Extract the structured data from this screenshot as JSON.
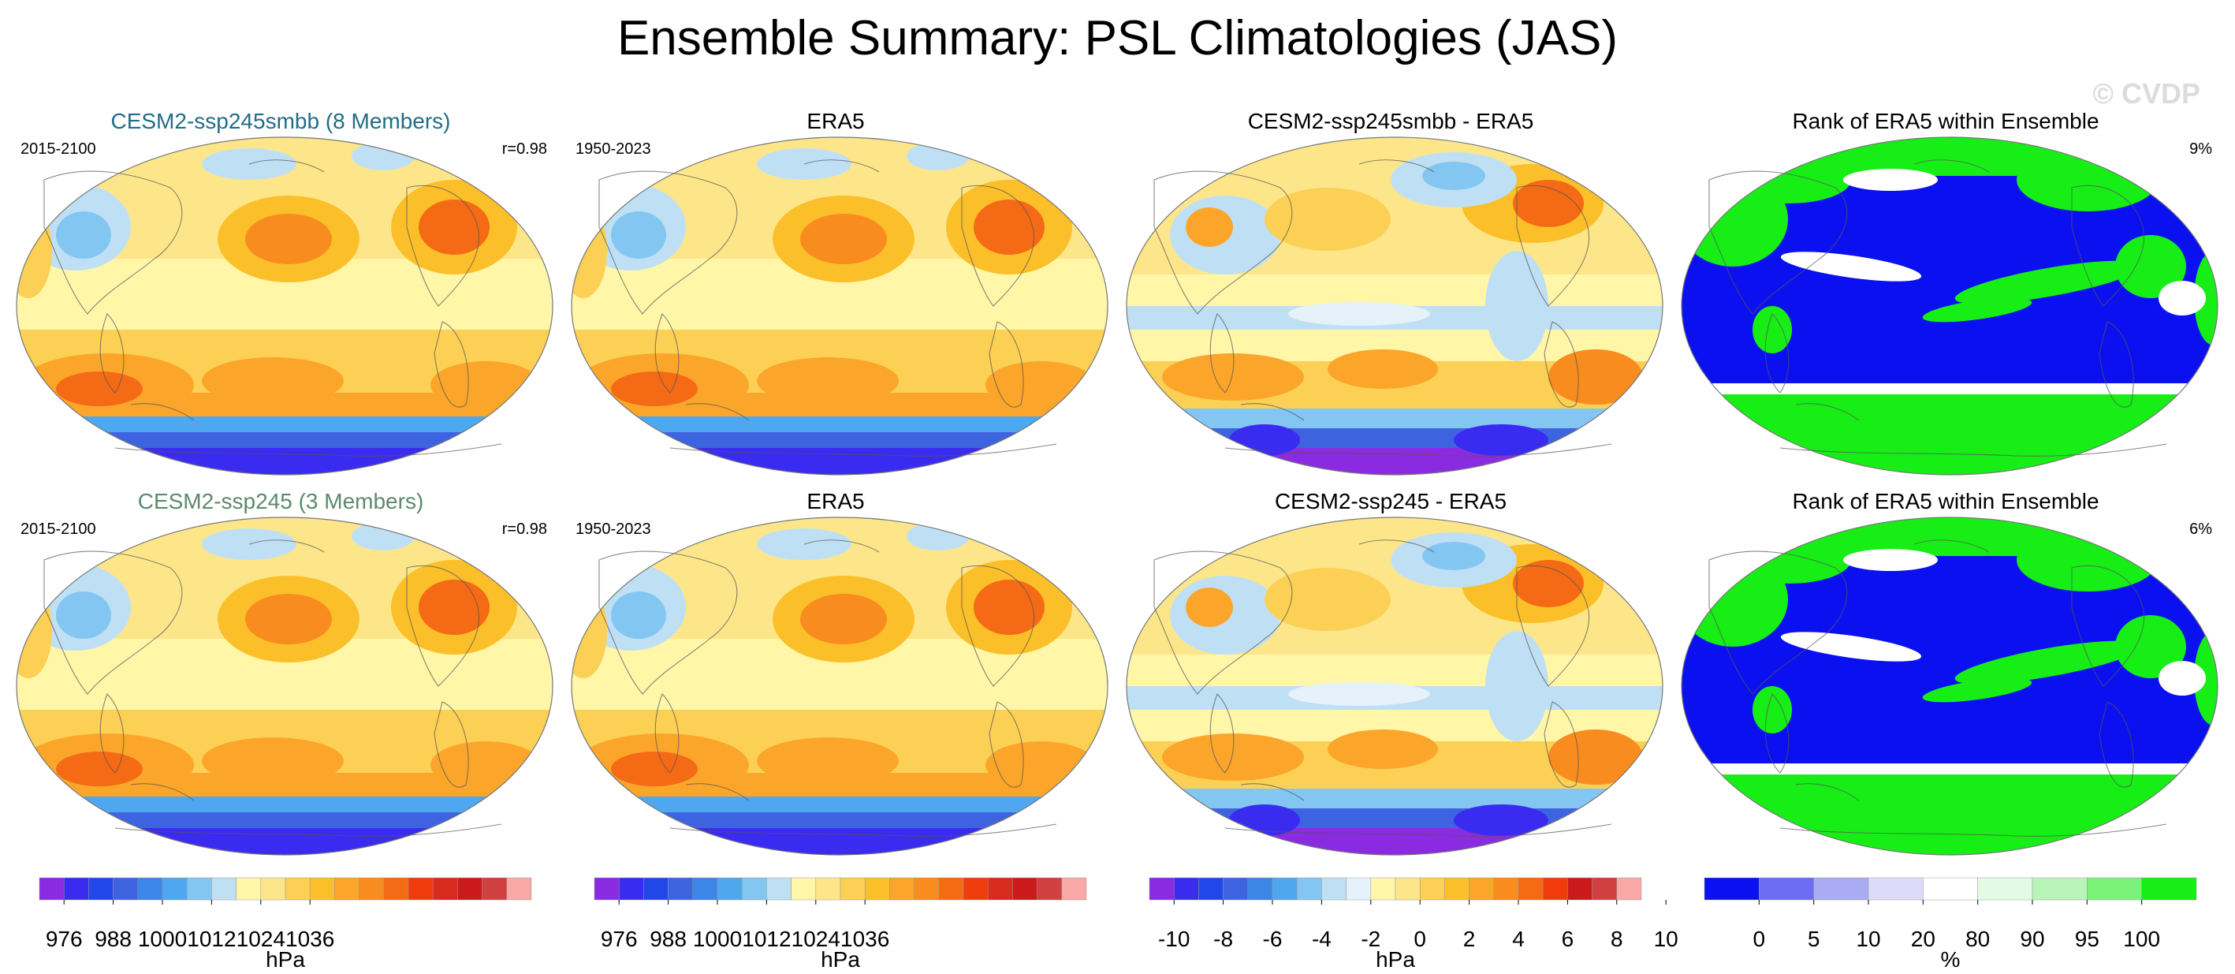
{
  "page": {
    "title": "Ensemble Summary: PSL Climatologies (JAS)",
    "watermark": "© CVDP"
  },
  "panels": [
    {
      "id": "r1c1",
      "kind": "psl",
      "title": "CESM2-ssp245smbb (8 Members)",
      "title_color": "#1f6e86",
      "left_label": "2015-2100",
      "right_label": "r=0.98"
    },
    {
      "id": "r1c2",
      "kind": "psl",
      "title": "ERA5",
      "title_color": "#000000",
      "left_label": "1950-2023",
      "right_label": ""
    },
    {
      "id": "r1c3",
      "kind": "diff",
      "title": "CESM2-ssp245smbb - ERA5",
      "title_color": "#000000",
      "left_label": "",
      "right_label": ""
    },
    {
      "id": "r1c4",
      "kind": "rank",
      "title": "Rank of ERA5 within Ensemble",
      "title_color": "#000000",
      "left_label": "",
      "right_label": "9%"
    },
    {
      "id": "r2c1",
      "kind": "psl",
      "title": "CESM2-ssp245 (3 Members)",
      "title_color": "#5c8a6c",
      "left_label": "2015-2100",
      "right_label": "r=0.98"
    },
    {
      "id": "r2c2",
      "kind": "psl",
      "title": "ERA5",
      "title_color": "#000000",
      "left_label": "1950-2023",
      "right_label": ""
    },
    {
      "id": "r2c3",
      "kind": "diff",
      "title": "CESM2-ssp245 - ERA5",
      "title_color": "#000000",
      "left_label": "",
      "right_label": ""
    },
    {
      "id": "r2c4",
      "kind": "rank",
      "title": "Rank of ERA5 within Ensemble",
      "title_color": "#000000",
      "left_label": "",
      "right_label": "6%"
    }
  ],
  "colorbars": [
    {
      "id": "cb-psl",
      "units": "hPa",
      "colors": [
        "#8a2be2",
        "#3a2bf0",
        "#2247e8",
        "#3e63e0",
        "#3c86e8",
        "#4fa7f0",
        "#83c6f2",
        "#bfe0f4",
        "#fff6a8",
        "#fde68a",
        "#fbd054",
        "#fbbf2a",
        "#fba62a",
        "#f98c1f",
        "#f56a15",
        "#f03c0c",
        "#d92a20",
        "#cc1a1a",
        "#d04040",
        "#f9a8a8"
      ],
      "labels": [
        "976",
        "988",
        "1000",
        "1012",
        "1024",
        "1036"
      ],
      "label_slots": [
        1,
        3,
        5,
        7,
        9,
        11
      ]
    },
    {
      "id": "cb-psl2",
      "units": "hPa",
      "colors": [
        "#8a2be2",
        "#3a2bf0",
        "#2247e8",
        "#3e63e0",
        "#3c86e8",
        "#4fa7f0",
        "#83c6f2",
        "#bfe0f4",
        "#fff6a8",
        "#fde68a",
        "#fbd054",
        "#fbbf2a",
        "#fba62a",
        "#f98c1f",
        "#f56a15",
        "#f03c0c",
        "#d92a20",
        "#cc1a1a",
        "#d04040",
        "#f9a8a8"
      ],
      "labels": [
        "976",
        "988",
        "1000",
        "1012",
        "1024",
        "1036"
      ],
      "label_slots": [
        1,
        3,
        5,
        7,
        9,
        11
      ]
    },
    {
      "id": "cb-diff",
      "units": "hPa",
      "colors": [
        "#8a2be2",
        "#3a2bf0",
        "#2247e8",
        "#3e63e0",
        "#3c86e8",
        "#4fa7f0",
        "#83c6f2",
        "#bfe0f4",
        "#e6f2fa",
        "#fff6a8",
        "#fde68a",
        "#fbd054",
        "#fbbf2a",
        "#fba62a",
        "#f98c1f",
        "#f56a15",
        "#f03c0c",
        "#cc1a1a",
        "#d04040",
        "#f9a8a8"
      ],
      "labels": [
        "-10",
        "-8",
        "-6",
        "-4",
        "-2",
        "0",
        "2",
        "4",
        "6",
        "8",
        "10"
      ],
      "label_slots": [
        1,
        3,
        5,
        7,
        9,
        11,
        13,
        15,
        17,
        19,
        21
      ]
    },
    {
      "id": "cb-rank",
      "units": "%",
      "colors": [
        "#0b10f0",
        "#6b6ef2",
        "#a9abf4",
        "#dcdcf8",
        "#ffffff",
        "#e4fae4",
        "#b9f5b9",
        "#7af27a",
        "#16ee16"
      ],
      "labels": [
        "0",
        "5",
        "10",
        "20",
        "80",
        "90",
        "95",
        "100"
      ],
      "label_slots": [
        1,
        2,
        3,
        4,
        5,
        6,
        7,
        8
      ]
    }
  ]
}
